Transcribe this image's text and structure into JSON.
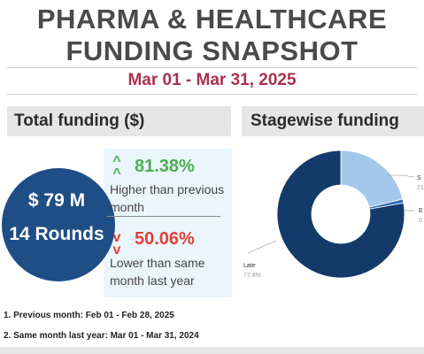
{
  "header": {
    "title_line1": "PHARMA & HEALTHCARE",
    "title_line2": "FUNDING SNAPSHOT",
    "date_range": "Mar 01 - Mar 31, 2025"
  },
  "total_funding": {
    "section_title": "Total funding ($)",
    "amount": "$ 79 M",
    "rounds": "14 Rounds",
    "previous_month": {
      "percent": "81.38%",
      "description": "Higher than previous month",
      "direction": "up",
      "color": "#4caf50"
    },
    "same_month_last_year": {
      "percent": "50.06%",
      "description": "Lower than same month last year",
      "direction": "down",
      "color": "#e0413a"
    }
  },
  "notes": [
    "1. Previous month: Feb 01 - Feb 28, 2025",
    "2. Same month last year: Mar 01 - Mar 31, 2024"
  ],
  "stagewise": {
    "section_title": "Stagewise funding",
    "visible_labels": {
      "late_label": "Late",
      "late_value": "77.8%",
      "top_label_fragment": "S",
      "top_value_fragment": "21",
      "mid_label_fragment": "E",
      "mid_value_fragment": "0"
    }
  },
  "chart_data": {
    "type": "pie",
    "title": "Stagewise funding",
    "series": [
      {
        "labels": [
          "Late",
          "S",
          "E"
        ],
        "values": [
          77.8,
          21.2,
          1.0
        ],
        "colors": [
          "#133b6a",
          "#a4c8ec",
          "#2f6fb0"
        ]
      }
    ],
    "donut": true,
    "legend": "outside-labels"
  }
}
